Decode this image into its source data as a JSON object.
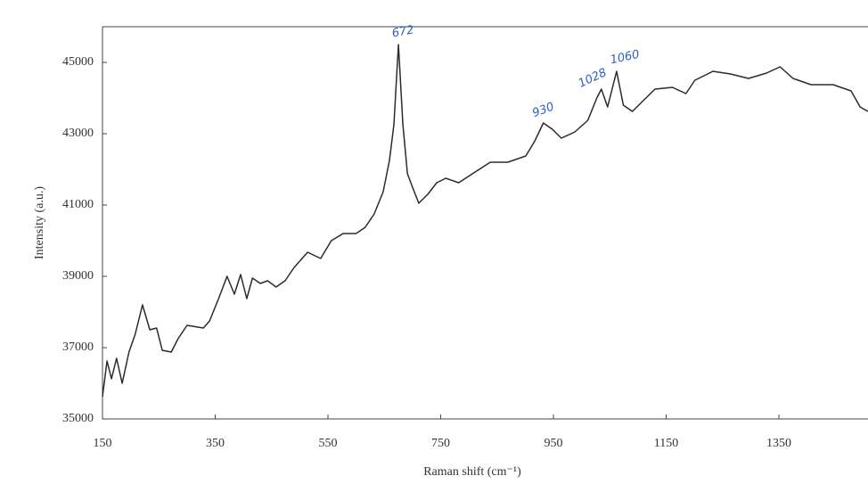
{
  "chart_data": {
    "type": "line",
    "y_label": "Intensity (a.u.)",
    "x_label": "Raman shift (cm⁻¹)",
    "x": [
      150,
      158,
      166,
      175,
      185,
      197,
      208,
      221,
      234,
      246,
      256,
      272,
      284,
      300,
      329,
      340,
      356,
      371,
      384,
      395,
      406,
      416,
      430,
      443,
      458,
      474,
      490,
      514,
      537,
      556,
      577,
      600,
      616,
      632,
      648,
      659,
      667,
      675,
      683,
      691,
      700,
      711,
      727,
      743,
      759,
      782,
      806,
      838,
      869,
      901,
      917,
      932,
      948,
      964,
      988,
      1011,
      1027,
      1035,
      1046,
      1062,
      1074,
      1090,
      1106,
      1130,
      1161,
      1185,
      1201,
      1233,
      1264,
      1296,
      1328,
      1352,
      1375,
      1407,
      1446,
      1478,
      1494,
      1508
    ],
    "series": [
      {
        "color": "#2b2b2b",
        "values": [
          35625,
          36625,
          36125,
          36700,
          36000,
          36875,
          37375,
          38200,
          37500,
          37550,
          36925,
          36875,
          37250,
          37625,
          37550,
          37750,
          38375,
          39000,
          38500,
          39050,
          38375,
          38950,
          38800,
          38875,
          38700,
          38875,
          39250,
          39675,
          39500,
          40000,
          40200,
          40200,
          40375,
          40750,
          41375,
          42250,
          43250,
          45500,
          43250,
          41875,
          41500,
          41050,
          41300,
          41625,
          41750,
          41625,
          41875,
          42200,
          42200,
          42375,
          42800,
          43300,
          43125,
          42875,
          43050,
          43375,
          44000,
          44250,
          43750,
          44750,
          43800,
          43625,
          43875,
          44250,
          44300,
          44125,
          44500,
          44750,
          44675,
          44550,
          44700,
          44875,
          44550,
          44375,
          44375,
          44200,
          43750,
          43625
        ]
      }
    ],
    "xlim": [
      150,
      1508
    ],
    "ylim": [
      35000,
      46000
    ],
    "xticks": [
      150,
      350,
      550,
      750,
      950,
      1150,
      1350
    ],
    "yticks": [
      35000,
      37000,
      39000,
      41000,
      43000,
      45000
    ],
    "annotations": [
      "672",
      "930",
      "1028",
      "1060"
    ],
    "annotation_color": "#2d5fc4"
  }
}
